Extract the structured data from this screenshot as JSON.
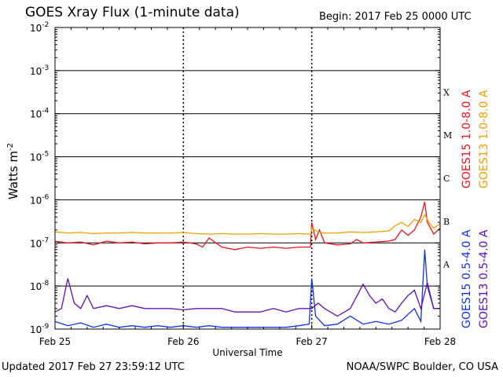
{
  "header": {
    "title": "GOES Xray Flux (1-minute data)",
    "begin": "Begin:  2017 Feb 25 0000 UTC"
  },
  "footer": {
    "updated": "Updated 2017 Feb 27 23:59:12 UTC",
    "credit": "NOAA/SWPC Boulder, CO USA"
  },
  "colors": {
    "goes15_long": "#e8141e",
    "goes13_long": "#f0a000",
    "goes15_short": "#1030f0",
    "goes13_short": "#6010b0"
  },
  "chart_data": {
    "type": "line",
    "log_scale": true,
    "xlabel": "Universal Time",
    "ylabel": "Watts m",
    "ylabel_sup": "-2",
    "xlim": [
      0,
      3
    ],
    "ylim": [
      1e-09,
      0.01
    ],
    "x_ticks": [
      {
        "value": 0,
        "label": "Feb 25"
      },
      {
        "value": 1,
        "label": "Feb 26"
      },
      {
        "value": 2,
        "label": "Feb 27"
      },
      {
        "value": 3,
        "label": "Feb 28"
      }
    ],
    "y_ticks": [
      {
        "exp": -2,
        "base": "10",
        "sup": "-2"
      },
      {
        "exp": -3,
        "base": "10",
        "sup": "-3"
      },
      {
        "exp": -4,
        "base": "10",
        "sup": "-4"
      },
      {
        "exp": -5,
        "base": "10",
        "sup": "-5"
      },
      {
        "exp": -6,
        "base": "10",
        "sup": "-6"
      },
      {
        "exp": -7,
        "base": "10",
        "sup": "-7"
      },
      {
        "exp": -8,
        "base": "10",
        "sup": "-8"
      },
      {
        "exp": -9,
        "base": "10",
        "sup": "-9"
      }
    ],
    "flare_classes": [
      {
        "label": "X",
        "exp": -3.5
      },
      {
        "label": "M",
        "exp": -4.5
      },
      {
        "label": "C",
        "exp": -5.5
      },
      {
        "label": "B",
        "exp": -6.5
      },
      {
        "label": "A",
        "exp": -7.5
      }
    ],
    "grid": true,
    "legend_placement": "right, vertical",
    "series": [
      {
        "name": "GOES15 1.0-8.0 A",
        "color_key": "goes15_long",
        "x": [
          0,
          0.1,
          0.2,
          0.3,
          0.4,
          0.5,
          0.6,
          0.7,
          0.8,
          0.9,
          1.0,
          1.1,
          1.15,
          1.2,
          1.3,
          1.4,
          1.5,
          1.6,
          1.7,
          1.8,
          1.9,
          1.99,
          2.0,
          2.03,
          2.06,
          2.1,
          2.2,
          2.3,
          2.35,
          2.4,
          2.5,
          2.6,
          2.65,
          2.7,
          2.75,
          2.8,
          2.85,
          2.88,
          2.9,
          2.95,
          3.0
        ],
        "y": [
          1.1e-07,
          1e-07,
          1.05e-07,
          9e-08,
          1.1e-07,
          1e-07,
          1.05e-07,
          9.5e-08,
          1e-07,
          1e-07,
          1.05e-07,
          9.5e-08,
          8e-08,
          1.3e-07,
          8e-08,
          7e-08,
          8e-08,
          7.5e-08,
          8e-08,
          7.5e-08,
          8e-08,
          8e-08,
          3e-07,
          1.2e-07,
          2e-07,
          1e-07,
          9e-08,
          9.5e-08,
          1.2e-07,
          1e-07,
          1.05e-07,
          1.1e-07,
          1.2e-07,
          2e-07,
          1.5e-07,
          2e-07,
          4e-07,
          9e-07,
          3e-07,
          1.6e-07,
          2.2e-07
        ]
      },
      {
        "name": "GOES13 1.0-8.0 A",
        "color_key": "goes13_long",
        "x": [
          0,
          0.1,
          0.2,
          0.3,
          0.4,
          0.5,
          0.6,
          0.7,
          0.8,
          0.9,
          1.0,
          1.1,
          1.2,
          1.3,
          1.4,
          1.5,
          1.6,
          1.7,
          1.8,
          1.9,
          1.99,
          2.0,
          2.05,
          2.1,
          2.2,
          2.3,
          2.4,
          2.5,
          2.6,
          2.65,
          2.7,
          2.75,
          2.8,
          2.85,
          2.88,
          2.92,
          2.95,
          3.0
        ],
        "y": [
          1.8e-07,
          1.7e-07,
          1.75e-07,
          1.65e-07,
          1.7e-07,
          1.7e-07,
          1.75e-07,
          1.7e-07,
          1.7e-07,
          1.7e-07,
          1.75e-07,
          1.65e-07,
          1.6e-07,
          1.65e-07,
          1.6e-07,
          1.6e-07,
          1.65e-07,
          1.6e-07,
          1.6e-07,
          1.65e-07,
          1.6e-07,
          2.2e-07,
          1.8e-07,
          1.7e-07,
          1.7e-07,
          1.8e-07,
          1.75e-07,
          1.8e-07,
          1.9e-07,
          2.5e-07,
          3e-07,
          2.4e-07,
          3.5e-07,
          3e-07,
          4.5e-07,
          2.8e-07,
          2.2e-07,
          2.8e-07
        ]
      },
      {
        "name": "GOES15 0.5-4.0 A",
        "color_key": "goes15_short",
        "x": [
          0,
          0.1,
          0.2,
          0.3,
          0.4,
          0.5,
          0.6,
          0.7,
          0.8,
          0.9,
          1.0,
          1.1,
          1.2,
          1.3,
          1.4,
          1.5,
          1.6,
          1.7,
          1.8,
          1.9,
          1.98,
          2.0,
          2.03,
          2.1,
          2.2,
          2.3,
          2.4,
          2.5,
          2.6,
          2.7,
          2.8,
          2.85,
          2.88,
          2.9,
          2.95,
          3.0
        ],
        "y": [
          1.5e-09,
          1.2e-09,
          1.4e-09,
          1.1e-09,
          1.3e-09,
          1.1e-09,
          1.2e-09,
          1.1e-09,
          1.2e-09,
          1.1e-09,
          1.2e-09,
          1.1e-09,
          1.2e-09,
          1.1e-09,
          1.1e-09,
          1.1e-09,
          1.1e-09,
          1.1e-09,
          1.1e-09,
          1.2e-09,
          1.3e-09,
          1.5e-08,
          2e-09,
          1.2e-09,
          1.3e-09,
          2e-09,
          1.3e-09,
          1.5e-09,
          1.3e-09,
          1.6e-09,
          3e-09,
          1.5e-09,
          7e-08,
          1e-08,
          3e-09,
          3e-09
        ]
      },
      {
        "name": "GOES13 0.5-4.0 A",
        "color_key": "goes13_short",
        "x": [
          0,
          0.05,
          0.1,
          0.15,
          0.2,
          0.25,
          0.3,
          0.4,
          0.5,
          0.6,
          0.7,
          0.8,
          0.9,
          1.0,
          1.1,
          1.2,
          1.3,
          1.4,
          1.5,
          1.6,
          1.7,
          1.8,
          1.9,
          2.0,
          2.05,
          2.1,
          2.2,
          2.3,
          2.4,
          2.45,
          2.5,
          2.55,
          2.6,
          2.65,
          2.7,
          2.75,
          2.8,
          2.85,
          2.9,
          2.95,
          3.0
        ],
        "y": [
          2.5e-09,
          3e-09,
          1.5e-08,
          4e-09,
          3e-09,
          6e-09,
          3e-09,
          3.5e-09,
          3e-09,
          3.5e-09,
          3e-09,
          3e-09,
          3e-09,
          2.8e-09,
          3e-09,
          3e-09,
          3e-09,
          2.5e-09,
          2.5e-09,
          2.5e-09,
          3e-09,
          2.5e-09,
          3e-09,
          3e-09,
          4e-09,
          3e-09,
          2e-09,
          3e-09,
          1.1e-08,
          6e-09,
          4e-09,
          5e-09,
          3e-09,
          2.5e-09,
          4e-09,
          6e-09,
          8e-09,
          3e-09,
          1.2e-08,
          3e-09,
          3e-09
        ]
      }
    ]
  }
}
